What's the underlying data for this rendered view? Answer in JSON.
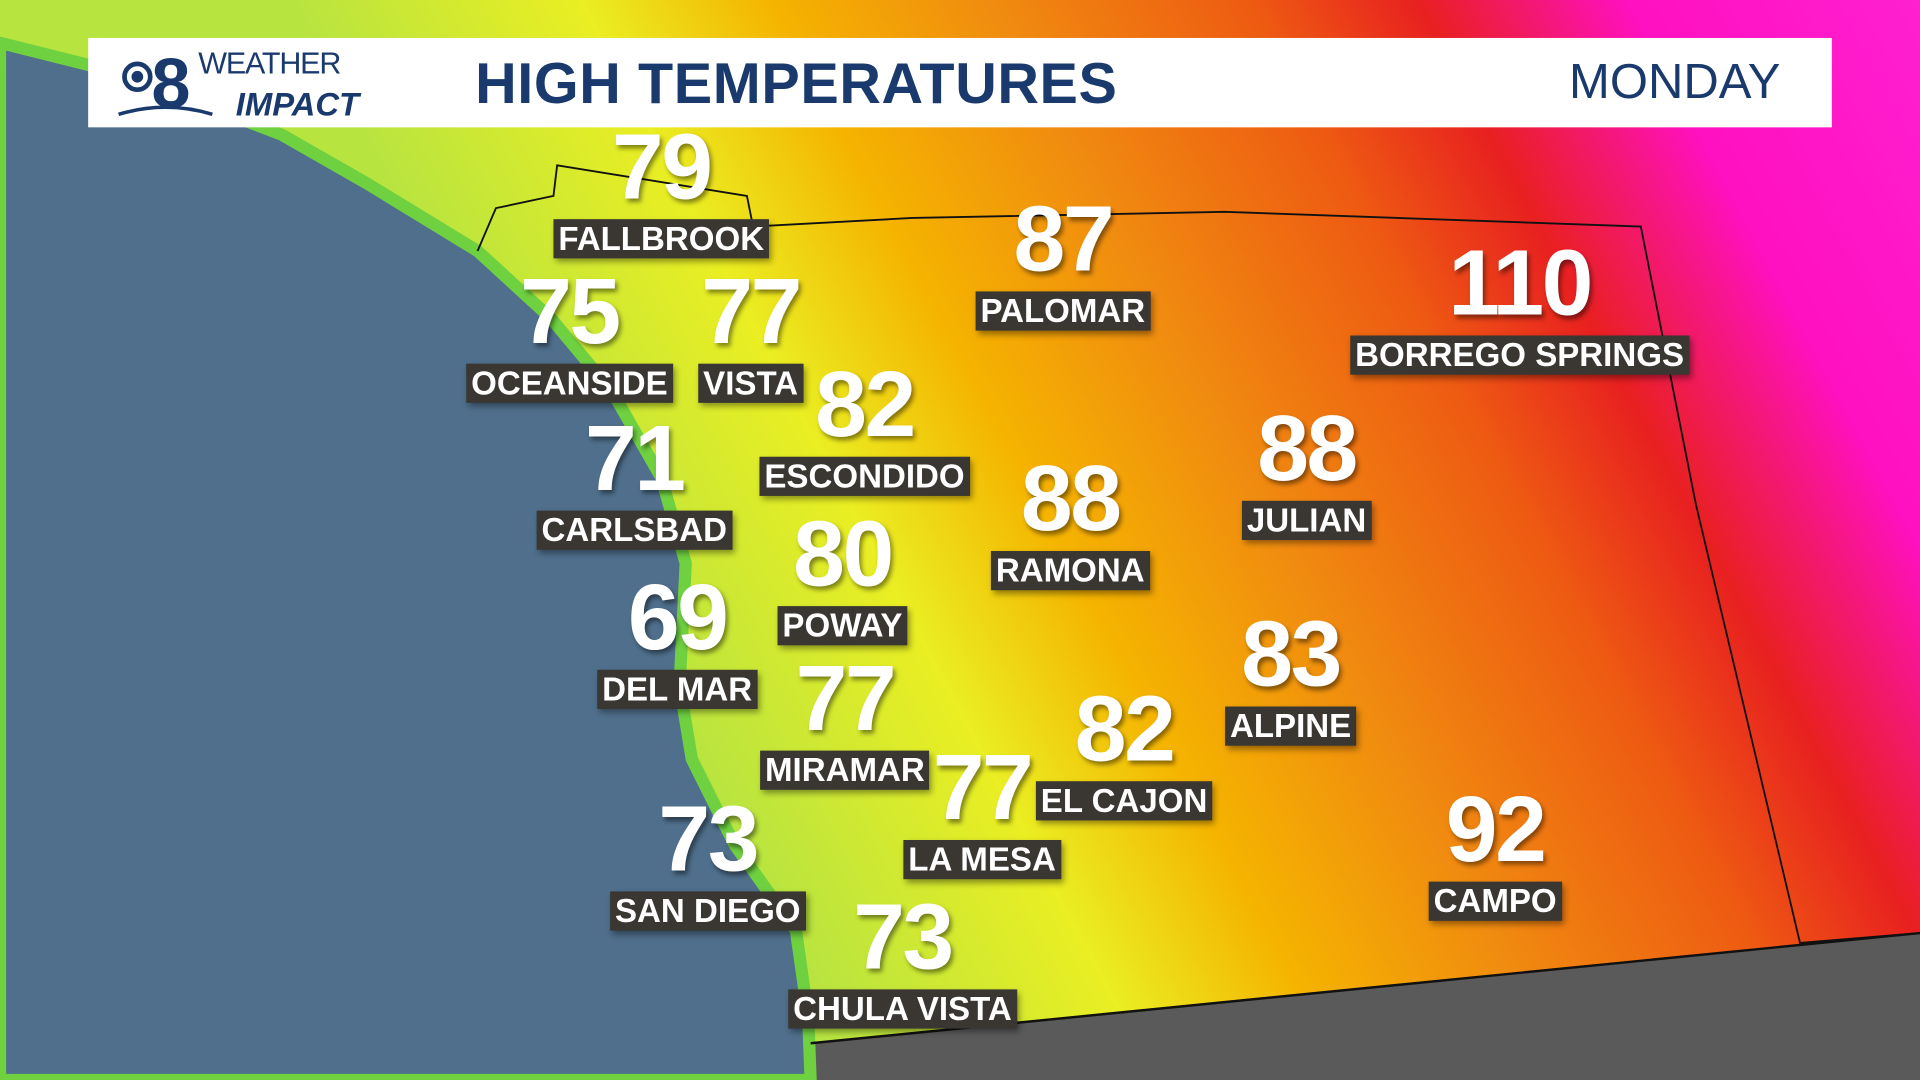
{
  "header": {
    "logo_text": "8 WEATHER IMPACT",
    "title": "HIGH TEMPERATURES",
    "day": "MONDAY"
  },
  "colors": {
    "ocean": "#4f6f8c",
    "mexico": "#5a5a5a",
    "header_text": "#1a3a6e",
    "label_bg": "#3a3632",
    "temp_scale": [
      "#9ee04a",
      "#e8ee20",
      "#f5b400",
      "#f08a10",
      "#ee5010",
      "#e81e1e",
      "#ff10c8"
    ]
  },
  "cities": [
    {
      "name": "FALLBROOK",
      "temp": "79"
    },
    {
      "name": "OCEANSIDE",
      "temp": "75"
    },
    {
      "name": "VISTA",
      "temp": "77"
    },
    {
      "name": "PALOMAR",
      "temp": "87"
    },
    {
      "name": "BORREGO SPRINGS",
      "temp": "110"
    },
    {
      "name": "ESCONDIDO",
      "temp": "82"
    },
    {
      "name": "CARLSBAD",
      "temp": "71"
    },
    {
      "name": "RAMONA",
      "temp": "88"
    },
    {
      "name": "JULIAN",
      "temp": "88"
    },
    {
      "name": "POWAY",
      "temp": "80"
    },
    {
      "name": "DEL MAR",
      "temp": "69"
    },
    {
      "name": "MIRAMAR",
      "temp": "77"
    },
    {
      "name": "ALPINE",
      "temp": "83"
    },
    {
      "name": "EL CAJON",
      "temp": "82"
    },
    {
      "name": "LA MESA",
      "temp": "77"
    },
    {
      "name": "SAN DIEGO",
      "temp": "73"
    },
    {
      "name": "CAMPO",
      "temp": "92"
    },
    {
      "name": "CHULA VISTA",
      "temp": "73"
    }
  ]
}
